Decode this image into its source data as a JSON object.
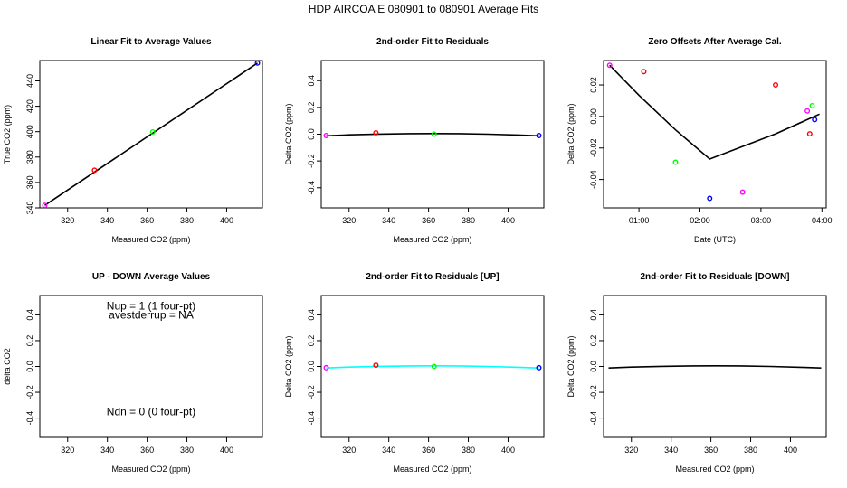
{
  "figure_title": "HDP   AIRCOA E   080901 to 080901   Average Fits",
  "chart_data": [
    {
      "id": "p1",
      "type": "scatter",
      "title": "Linear Fit to Average Values",
      "xlabel": "Measured CO2 (ppm)",
      "ylabel": "True CO2 (ppm)",
      "xlim": [
        306,
        418
      ],
      "ylim": [
        340,
        456
      ],
      "xticks": [
        320,
        340,
        360,
        380,
        400
      ],
      "yticks": [
        340,
        360,
        380,
        400,
        420,
        440
      ],
      "points": [
        {
          "x": 308.5,
          "y": 342,
          "color": "#ff00ff"
        },
        {
          "x": 333.5,
          "y": 369.6,
          "color": "#ff0000"
        },
        {
          "x": 362.8,
          "y": 399.8,
          "color": "#00ff00"
        },
        {
          "x": 415.5,
          "y": 454,
          "color": "#0000ff"
        }
      ],
      "lines": [
        {
          "color": "#000000",
          "x": [
            308.5,
            415.5
          ],
          "y": [
            342,
            454
          ]
        }
      ]
    },
    {
      "id": "p2",
      "type": "scatter",
      "title": "2nd-order Fit to Residuals",
      "xlabel": "Measured CO2 (ppm)",
      "ylabel": "Delta CO2 (ppm)",
      "xlim": [
        306,
        418
      ],
      "ylim": [
        -0.55,
        0.55
      ],
      "xticks": [
        320,
        340,
        360,
        380,
        400
      ],
      "yticks": [
        -0.4,
        -0.2,
        0.0,
        0.2,
        0.4
      ],
      "yticklabels": [
        "-0.4",
        "-0.2",
        "0.0",
        "0.2",
        "0.4"
      ],
      "points": [
        {
          "x": 308.5,
          "y": -0.01,
          "color": "#ff00ff"
        },
        {
          "x": 333.5,
          "y": 0.01,
          "color": "#ff0000"
        },
        {
          "x": 362.8,
          "y": 0.0,
          "color": "#00ff00"
        },
        {
          "x": 415.5,
          "y": -0.01,
          "color": "#0000ff"
        }
      ],
      "lines": [
        {
          "color": "#000000",
          "x": [
            308.5,
            320,
            335,
            350,
            362,
            375,
            390,
            405,
            415.5
          ],
          "y": [
            -0.012,
            -0.005,
            0.001,
            0.004,
            0.005,
            0.004,
            0.0,
            -0.006,
            -0.012
          ]
        }
      ]
    },
    {
      "id": "p3",
      "type": "scatter",
      "title": "Zero Offsets After Average Cal.",
      "xlabel": "Date (UTC)",
      "ylabel": "Delta CO2 (ppm)",
      "xlim": [
        0.42,
        4.07
      ],
      "ylim": [
        -0.058,
        0.0355
      ],
      "xticks": [
        1,
        2,
        3,
        4
      ],
      "xticklabels": [
        "01:00",
        "02:00",
        "03:00",
        "04:00"
      ],
      "yticks": [
        -0.04,
        -0.02,
        0.0,
        0.02
      ],
      "yticklabels": [
        "-0.04",
        "-0.02",
        "0.00",
        "0.02"
      ],
      "points": [
        {
          "x": 0.52,
          "y": 0.0325,
          "color": "#ff00ff"
        },
        {
          "x": 1.08,
          "y": 0.0285,
          "color": "#ff0000"
        },
        {
          "x": 1.6,
          "y": -0.029,
          "color": "#00ff00"
        },
        {
          "x": 2.16,
          "y": -0.052,
          "color": "#0000ff"
        },
        {
          "x": 2.7,
          "y": -0.048,
          "color": "#ff00ff"
        },
        {
          "x": 3.24,
          "y": 0.02,
          "color": "#ff0000"
        },
        {
          "x": 3.76,
          "y": 0.0035,
          "color": "#ff00ff"
        },
        {
          "x": 3.8,
          "y": -0.011,
          "color": "#ff0000"
        },
        {
          "x": 3.84,
          "y": 0.0068,
          "color": "#00ff00"
        },
        {
          "x": 3.88,
          "y": -0.002,
          "color": "#0000ff"
        }
      ],
      "lines": [
        {
          "color": "#000000",
          "x": [
            0.52,
            1.0,
            1.6,
            2.16,
            3.24,
            3.96
          ],
          "y": [
            0.0325,
            0.0135,
            -0.0085,
            -0.027,
            -0.011,
            0.0015
          ]
        }
      ]
    },
    {
      "id": "p4",
      "type": "scatter",
      "title": "UP - DOWN Average Values",
      "xlabel": "Measured CO2 (ppm)",
      "ylabel": "delta CO2",
      "xlim": [
        306,
        418
      ],
      "ylim": [
        -0.55,
        0.55
      ],
      "xticks": [
        320,
        340,
        360,
        380,
        400
      ],
      "yticks": [
        -0.4,
        -0.2,
        0.0,
        0.2,
        0.4
      ],
      "yticklabels": [
        "-0.4",
        "-0.2",
        "0.0",
        "0.2",
        "0.4"
      ],
      "points": [],
      "lines": [],
      "annotations": [
        {
          "text": "Nup = 1 (1 four-pt)",
          "x": 362,
          "y": 0.44
        },
        {
          "text": "avestderrup = NA",
          "x": 362,
          "y": 0.37
        },
        {
          "text": "Ndn = 0 (0 four-pt)",
          "x": 362,
          "y": -0.38
        }
      ]
    },
    {
      "id": "p5",
      "type": "scatter",
      "title": "2nd-order Fit to Residuals [UP]",
      "xlabel": "Measured CO2 (ppm)",
      "ylabel": "Delta CO2 (ppm)",
      "xlim": [
        306,
        418
      ],
      "ylim": [
        -0.55,
        0.55
      ],
      "xticks": [
        320,
        340,
        360,
        380,
        400
      ],
      "yticks": [
        -0.4,
        -0.2,
        0.0,
        0.2,
        0.4
      ],
      "yticklabels": [
        "-0.4",
        "-0.2",
        "0.0",
        "0.2",
        "0.4"
      ],
      "points": [
        {
          "x": 308.5,
          "y": -0.01,
          "color": "#ff00ff"
        },
        {
          "x": 333.5,
          "y": 0.01,
          "color": "#ff0000"
        },
        {
          "x": 362.8,
          "y": 0.0,
          "color": "#00ff00"
        },
        {
          "x": 415.5,
          "y": -0.01,
          "color": "#0000ff"
        }
      ],
      "lines": [
        {
          "color": "#00ffff",
          "x": [
            308.5,
            320,
            335,
            350,
            362,
            375,
            390,
            405,
            415.5
          ],
          "y": [
            -0.012,
            -0.005,
            0.001,
            0.004,
            0.005,
            0.004,
            0.0,
            -0.006,
            -0.012
          ]
        }
      ]
    },
    {
      "id": "p6",
      "type": "line",
      "title": "2nd-order Fit to Residuals [DOWN]",
      "xlabel": "Measured CO2 (ppm)",
      "ylabel": "Delta CO2 (ppm)",
      "xlim": [
        306,
        418
      ],
      "ylim": [
        -0.55,
        0.55
      ],
      "xticks": [
        320,
        340,
        360,
        380,
        400
      ],
      "yticks": [
        -0.4,
        -0.2,
        0.0,
        0.2,
        0.4
      ],
      "yticklabels": [
        "-0.4",
        "-0.2",
        "0.0",
        "0.2",
        "0.4"
      ],
      "points": [],
      "lines": [
        {
          "color": "#000000",
          "x": [
            308.5,
            320,
            335,
            350,
            362,
            375,
            390,
            405,
            415.5
          ],
          "y": [
            -0.012,
            -0.005,
            0.001,
            0.004,
            0.005,
            0.004,
            0.0,
            -0.006,
            -0.012
          ]
        }
      ]
    }
  ]
}
